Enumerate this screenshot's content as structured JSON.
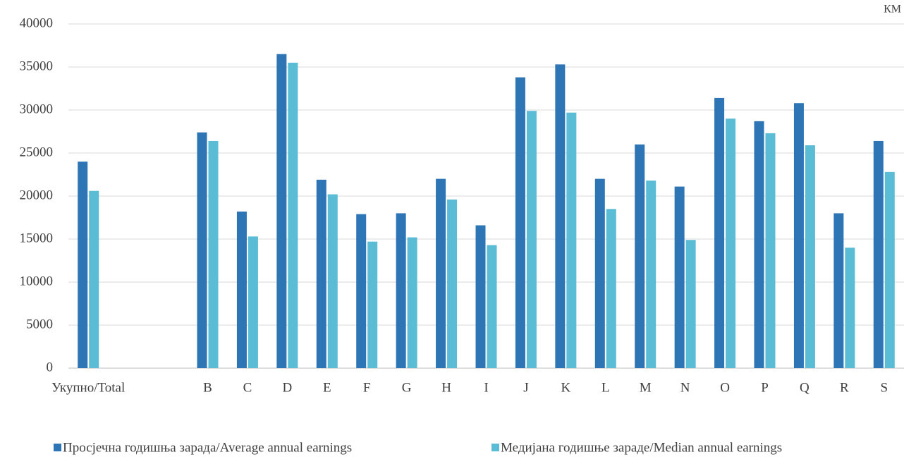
{
  "chart_data": {
    "type": "bar",
    "unit_label": "КМ",
    "categories": [
      "Укупно/Total",
      null,
      null,
      "B",
      "C",
      "D",
      "E",
      "F",
      "G",
      "H",
      "I",
      "J",
      "K",
      "L",
      "M",
      "N",
      "O",
      "P",
      "Q",
      "R",
      "S"
    ],
    "series": [
      {
        "name": "Просјечна годишња зарада/Average annual earnings",
        "color": "#2e75b6",
        "values": [
          24000,
          null,
          null,
          27400,
          18200,
          36500,
          21900,
          17900,
          18000,
          22000,
          16600,
          33800,
          35300,
          22000,
          26000,
          21100,
          31400,
          28700,
          30800,
          18000,
          26400
        ]
      },
      {
        "name": "Медијана годишње зараде/Median annual earnings",
        "color": "#5bbcd6",
        "values": [
          20600,
          null,
          null,
          26400,
          15300,
          35500,
          20200,
          14700,
          15200,
          19600,
          14300,
          29900,
          29700,
          18500,
          21800,
          14900,
          29000,
          27300,
          25900,
          14000,
          22800
        ]
      }
    ],
    "ylim": [
      0,
      40000
    ],
    "yticks": [
      0,
      5000,
      10000,
      15000,
      20000,
      25000,
      30000,
      35000,
      40000
    ],
    "grid": true,
    "legend": "bottom"
  }
}
